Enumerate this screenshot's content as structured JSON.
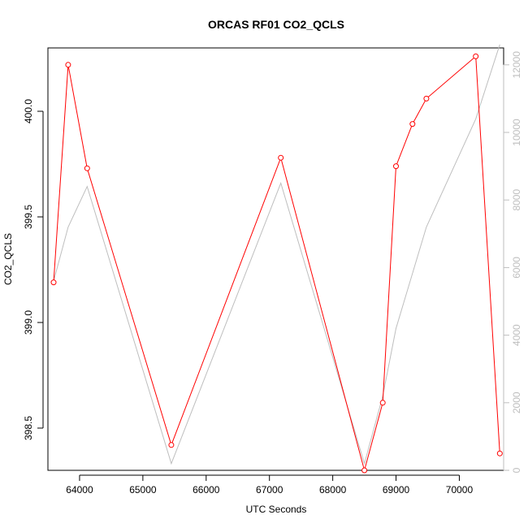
{
  "chart_data": {
    "type": "line",
    "title": "ORCAS RF01 CO2_QCLS",
    "xlabel": "UTC Seconds",
    "ylabel": "CO2_QCLS",
    "y2label": "",
    "x_ticks": [
      64000,
      65000,
      66000,
      67000,
      68000,
      69000,
      70000
    ],
    "y_ticks": [
      398.5,
      399.0,
      399.5,
      400.0
    ],
    "y2_ticks": [
      0,
      2000,
      4000,
      6000,
      8000,
      10000,
      12000
    ],
    "xlim": [
      63500,
      70700
    ],
    "ylim": [
      398.3,
      400.3
    ],
    "y2lim": [
      0,
      12500
    ],
    "grid": false,
    "colors": {
      "primary_series": "#ff0000",
      "secondary_series": "#bebebe",
      "secondary_axis": "#bebebe",
      "axis": "#000000"
    },
    "series": [
      {
        "axis": "left",
        "marker": "open-circle",
        "x": [
          63590,
          63820,
          64120,
          65450,
          67180,
          68500,
          68790,
          69000,
          69260,
          69480,
          70260,
          70640
        ],
        "values": [
          399.19,
          400.22,
          399.73,
          398.42,
          399.78,
          398.3,
          398.62,
          399.74,
          399.94,
          400.06,
          400.26,
          398.38
        ]
      },
      {
        "axis": "right",
        "marker": "none",
        "x": [
          63590,
          63820,
          64120,
          65450,
          67180,
          68500,
          68790,
          69000,
          69480,
          70260,
          70640
        ],
        "values": [
          5600,
          7200,
          8400,
          200,
          8500,
          200,
          2200,
          4200,
          7200,
          10400,
          12600
        ]
      }
    ]
  }
}
